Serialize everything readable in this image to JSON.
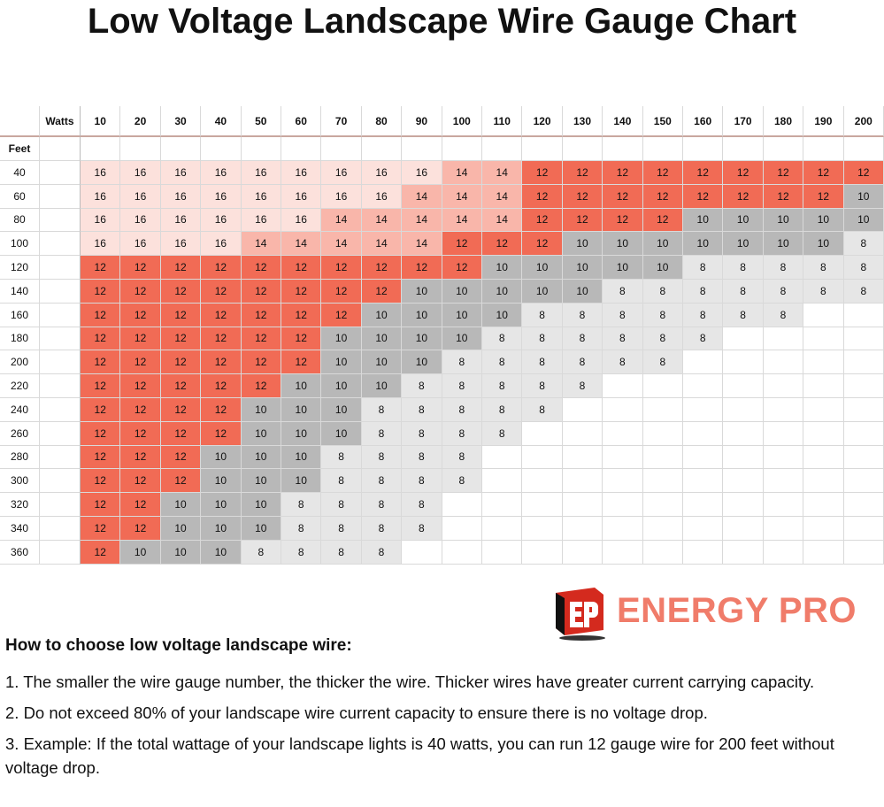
{
  "title": "Low Voltage Landscape Wire Gauge Chart",
  "table": {
    "corner_label": "Watts",
    "row_header_label": "Feet",
    "watts": [
      10,
      20,
      30,
      40,
      50,
      60,
      70,
      80,
      90,
      100,
      110,
      120,
      130,
      140,
      150,
      160,
      170,
      180,
      190,
      200
    ],
    "rows": [
      {
        "feet": 40,
        "gauges": [
          16,
          16,
          16,
          16,
          16,
          16,
          16,
          16,
          16,
          14,
          14,
          12,
          12,
          12,
          12,
          12,
          12,
          12,
          12,
          12
        ]
      },
      {
        "feet": 60,
        "gauges": [
          16,
          16,
          16,
          16,
          16,
          16,
          16,
          16,
          14,
          14,
          14,
          12,
          12,
          12,
          12,
          12,
          12,
          12,
          12,
          10
        ]
      },
      {
        "feet": 80,
        "gauges": [
          16,
          16,
          16,
          16,
          16,
          16,
          14,
          14,
          14,
          14,
          14,
          12,
          12,
          12,
          12,
          10,
          10,
          10,
          10,
          10
        ]
      },
      {
        "feet": 100,
        "gauges": [
          16,
          16,
          16,
          16,
          14,
          14,
          14,
          14,
          14,
          12,
          12,
          12,
          10,
          10,
          10,
          10,
          10,
          10,
          10,
          8
        ]
      },
      {
        "feet": 120,
        "gauges": [
          12,
          12,
          12,
          12,
          12,
          12,
          12,
          12,
          12,
          12,
          10,
          10,
          10,
          10,
          10,
          8,
          8,
          8,
          8,
          8
        ]
      },
      {
        "feet": 140,
        "gauges": [
          12,
          12,
          12,
          12,
          12,
          12,
          12,
          12,
          10,
          10,
          10,
          10,
          10,
          8,
          8,
          8,
          8,
          8,
          8,
          8
        ]
      },
      {
        "feet": 160,
        "gauges": [
          12,
          12,
          12,
          12,
          12,
          12,
          12,
          10,
          10,
          10,
          10,
          8,
          8,
          8,
          8,
          8,
          8,
          8,
          null,
          null
        ]
      },
      {
        "feet": 180,
        "gauges": [
          12,
          12,
          12,
          12,
          12,
          12,
          10,
          10,
          10,
          10,
          8,
          8,
          8,
          8,
          8,
          8,
          null,
          null,
          null,
          null
        ]
      },
      {
        "feet": 200,
        "gauges": [
          12,
          12,
          12,
          12,
          12,
          12,
          10,
          10,
          10,
          8,
          8,
          8,
          8,
          8,
          8,
          null,
          null,
          null,
          null,
          null
        ]
      },
      {
        "feet": 220,
        "gauges": [
          12,
          12,
          12,
          12,
          12,
          10,
          10,
          10,
          8,
          8,
          8,
          8,
          8,
          null,
          null,
          null,
          null,
          null,
          null,
          null
        ]
      },
      {
        "feet": 240,
        "gauges": [
          12,
          12,
          12,
          12,
          10,
          10,
          10,
          8,
          8,
          8,
          8,
          8,
          null,
          null,
          null,
          null,
          null,
          null,
          null,
          null
        ]
      },
      {
        "feet": 260,
        "gauges": [
          12,
          12,
          12,
          12,
          10,
          10,
          10,
          8,
          8,
          8,
          8,
          null,
          null,
          null,
          null,
          null,
          null,
          null,
          null,
          null
        ]
      },
      {
        "feet": 280,
        "gauges": [
          12,
          12,
          12,
          10,
          10,
          10,
          8,
          8,
          8,
          8,
          null,
          null,
          null,
          null,
          null,
          null,
          null,
          null,
          null,
          null
        ]
      },
      {
        "feet": 300,
        "gauges": [
          12,
          12,
          12,
          10,
          10,
          10,
          8,
          8,
          8,
          8,
          null,
          null,
          null,
          null,
          null,
          null,
          null,
          null,
          null,
          null
        ]
      },
      {
        "feet": 320,
        "gauges": [
          12,
          12,
          10,
          10,
          10,
          8,
          8,
          8,
          8,
          null,
          null,
          null,
          null,
          null,
          null,
          null,
          null,
          null,
          null,
          null
        ]
      },
      {
        "feet": 340,
        "gauges": [
          12,
          12,
          10,
          10,
          10,
          8,
          8,
          8,
          8,
          null,
          null,
          null,
          null,
          null,
          null,
          null,
          null,
          null,
          null,
          null
        ]
      },
      {
        "feet": 360,
        "gauges": [
          12,
          10,
          10,
          10,
          8,
          8,
          8,
          8,
          null,
          null,
          null,
          null,
          null,
          null,
          null,
          null,
          null,
          null,
          null,
          null
        ]
      }
    ]
  },
  "logo": {
    "name": "ENERGY PRO"
  },
  "instructions": {
    "heading": "How to choose low voltage landscape wire:",
    "items": [
      "1. The smaller the wire gauge number, the thicker the wire. Thicker wires have greater current carrying capacity.",
      "2. Do not exceed 80% of your landscape wire current capacity to ensure there is no voltage drop.",
      "3. Example: If the total wattage of your landscape lights is 40 watts, you can run 12 gauge wire for 200 feet without voltage drop."
    ]
  }
}
